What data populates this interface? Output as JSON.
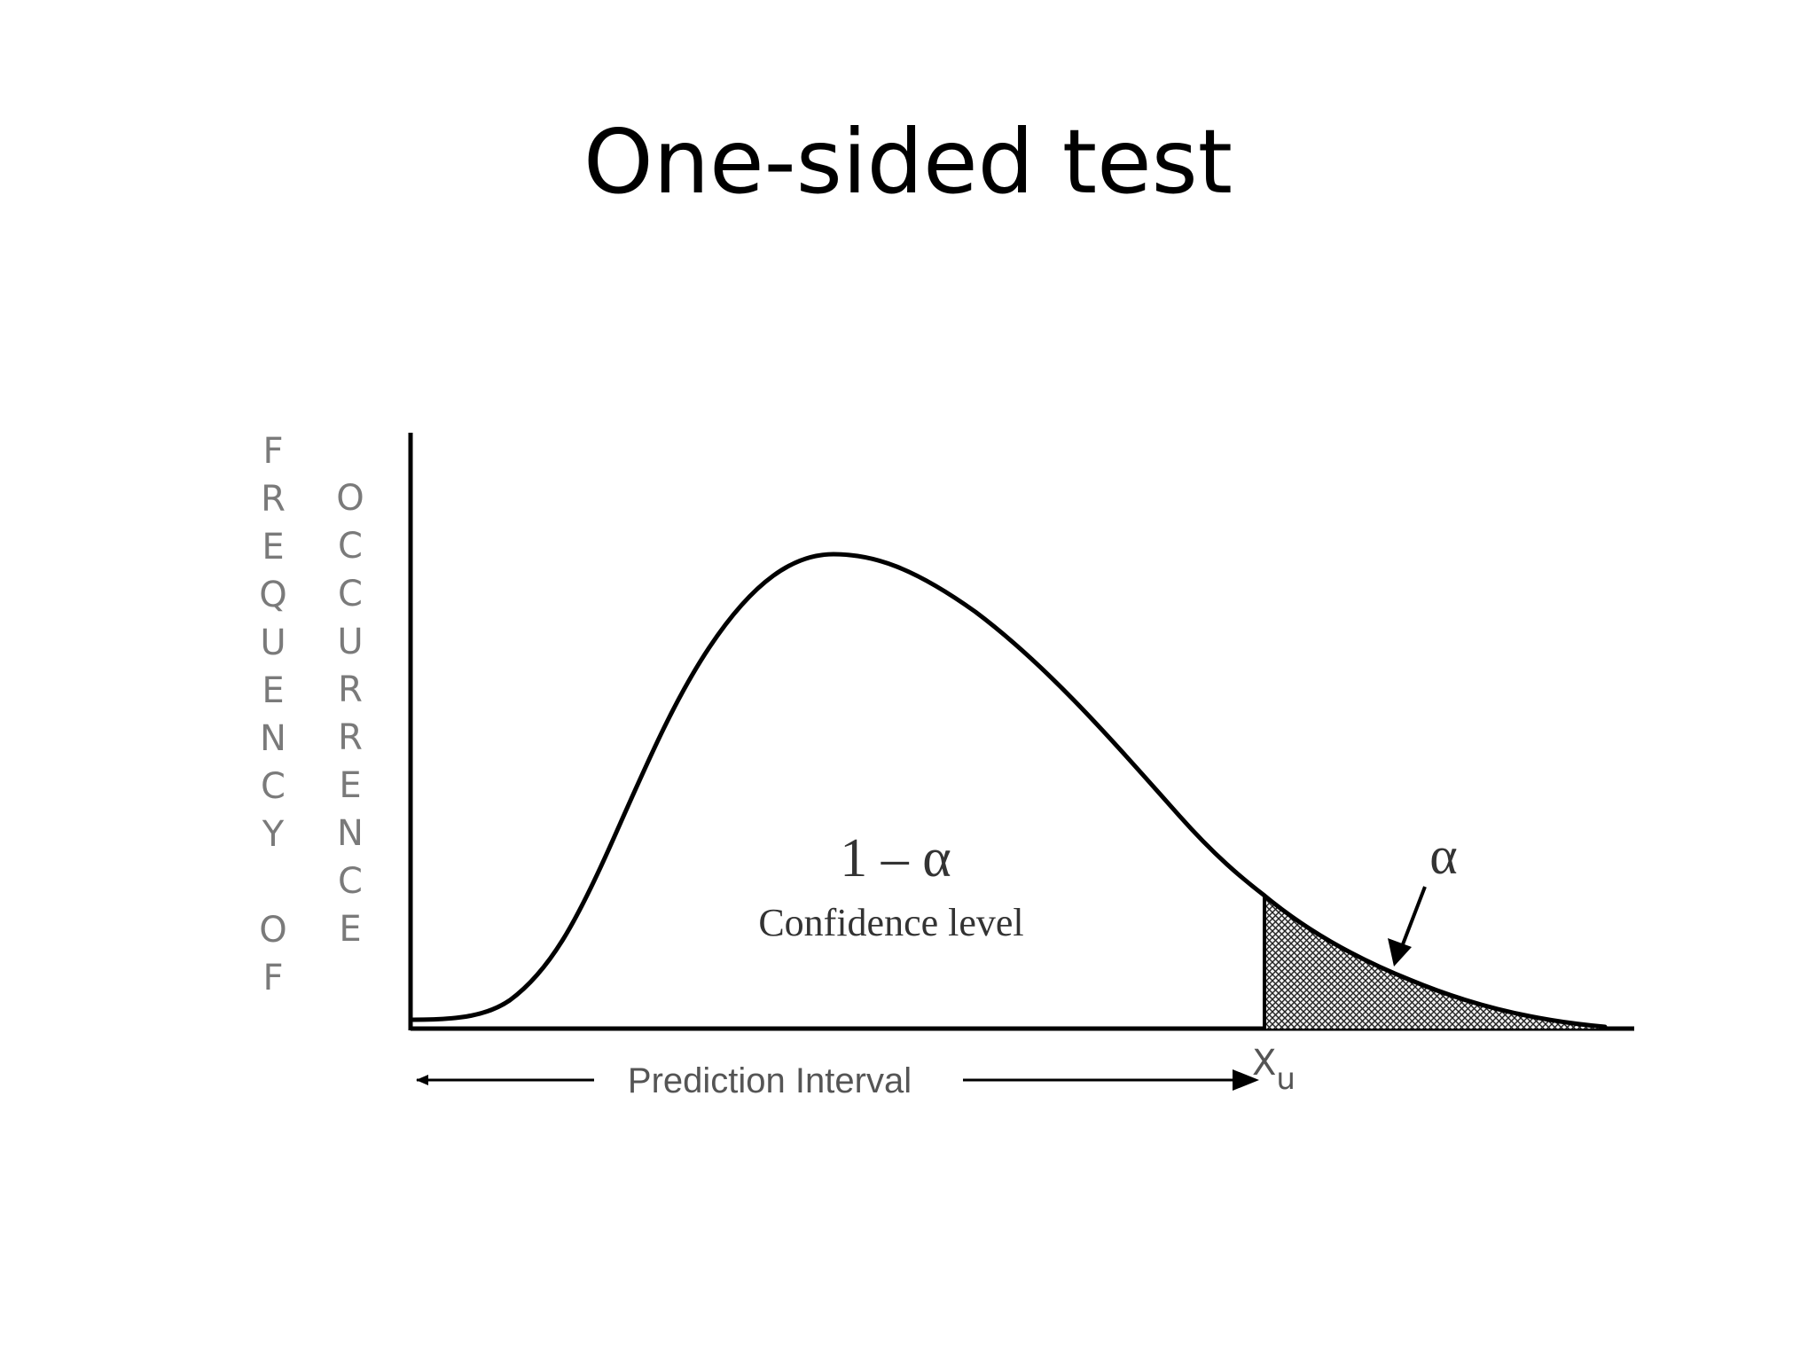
{
  "title": "One-sided test",
  "diagram": {
    "y_axis_label": {
      "column1": [
        "F",
        "R",
        "E",
        "Q",
        "U",
        "E",
        "N",
        "C",
        "Y",
        "",
        "O",
        "F"
      ],
      "column2": [
        "O",
        "C",
        "C",
        "U",
        "R",
        "R",
        "E",
        "N",
        "C",
        "E"
      ]
    },
    "center_symbol": "1 – α",
    "center_caption": "Confidence level",
    "tail_symbol": "α",
    "critical_value_main": "X",
    "critical_value_sub": "u",
    "interval_label": "Prediction Interval",
    "shaded_region": "right tail beyond Xu"
  }
}
